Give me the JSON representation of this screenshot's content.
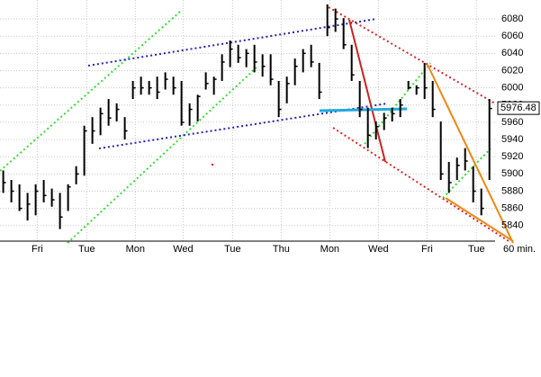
{
  "chart_data": {
    "type": "hilo",
    "unit_label": "60 min.",
    "last_price": 5976.48,
    "color": "#000000",
    "xlim": [
      -0.4,
      60.7
    ],
    "ylim": [
      5822,
      6102
    ],
    "yticks": [
      5840,
      5860,
      5880,
      5900,
      5920,
      5940,
      5960,
      5980,
      6000,
      6020,
      6040,
      6060,
      6080
    ],
    "xticks": [
      {
        "value": 4.2,
        "label": "Fri"
      },
      {
        "value": 10.3,
        "label": "Tue"
      },
      {
        "value": 16.3,
        "label": "Mon"
      },
      {
        "value": 22.2,
        "label": "Wed"
      },
      {
        "value": 28.3,
        "label": "Tue"
      },
      {
        "value": 34.3,
        "label": "Thu"
      },
      {
        "value": 40.3,
        "label": "Mon"
      },
      {
        "value": 46.3,
        "label": "Wed"
      },
      {
        "value": 52.3,
        "label": "Fri"
      },
      {
        "value": 58.4,
        "label": "Tue"
      }
    ],
    "grid": true,
    "series": [
      {
        "name": "High",
        "values": [
          5904,
          5893,
          5888,
          5878,
          5888,
          5893,
          5883,
          5878,
          5888,
          5909,
          5956,
          5966,
          5977,
          5987,
          5982,
          5966,
          6008,
          6013,
          6008,
          6013,
          6018,
          6013,
          6008,
          5982,
          5992,
          6018,
          6013,
          6039,
          6055,
          6050,
          6045,
          6050,
          6039,
          6039,
          6008,
          6013,
          6034,
          6045,
          6050,
          6029,
          6097,
          6092,
          6081,
          6050,
          6008,
          5977,
          5961,
          5971,
          5977,
          5987,
          6008,
          6003,
          6029,
          6008,
          5961,
          5914,
          5919,
          5930,
          5909,
          5883,
          5987
        ]
      },
      {
        "name": "Low",
        "values": [
          5878,
          5867,
          5857,
          5846,
          5852,
          5867,
          5862,
          5836,
          5857,
          5888,
          5898,
          5935,
          5945,
          5956,
          5961,
          5940,
          5987,
          5992,
          5992,
          5987,
          5998,
          5992,
          5956,
          5956,
          5961,
          5998,
          5992,
          6008,
          6024,
          6029,
          6024,
          6018,
          6013,
          6003,
          5966,
          5982,
          6003,
          6018,
          6024,
          5987,
          6060,
          6065,
          6045,
          6008,
          5966,
          5930,
          5940,
          5951,
          5961,
          5966,
          5998,
          5992,
          5987,
          5966,
          5893,
          5878,
          5893,
          5904,
          5867,
          5852,
          5893
        ]
      },
      {
        "name": "Close",
        "values": [
          5890,
          5880,
          5860,
          5865,
          5880,
          5875,
          5870,
          5850,
          5885,
          5900,
          5950,
          5950,
          5970,
          5965,
          5975,
          5950,
          6000,
          6000,
          6000,
          5995,
          6010,
          6000,
          5960,
          5975,
          5990,
          6005,
          6010,
          6030,
          6045,
          6035,
          6040,
          6030,
          6025,
          6010,
          5975,
          6005,
          6025,
          6040,
          6030,
          5995,
          6070,
          6080,
          6050,
          6015,
          5975,
          5945,
          5955,
          5965,
          5970,
          5980,
          6000,
          6000,
          6000,
          5975,
          5900,
          5890,
          5910,
          5915,
          5880,
          5860,
          5976
        ]
      }
    ]
  }
}
